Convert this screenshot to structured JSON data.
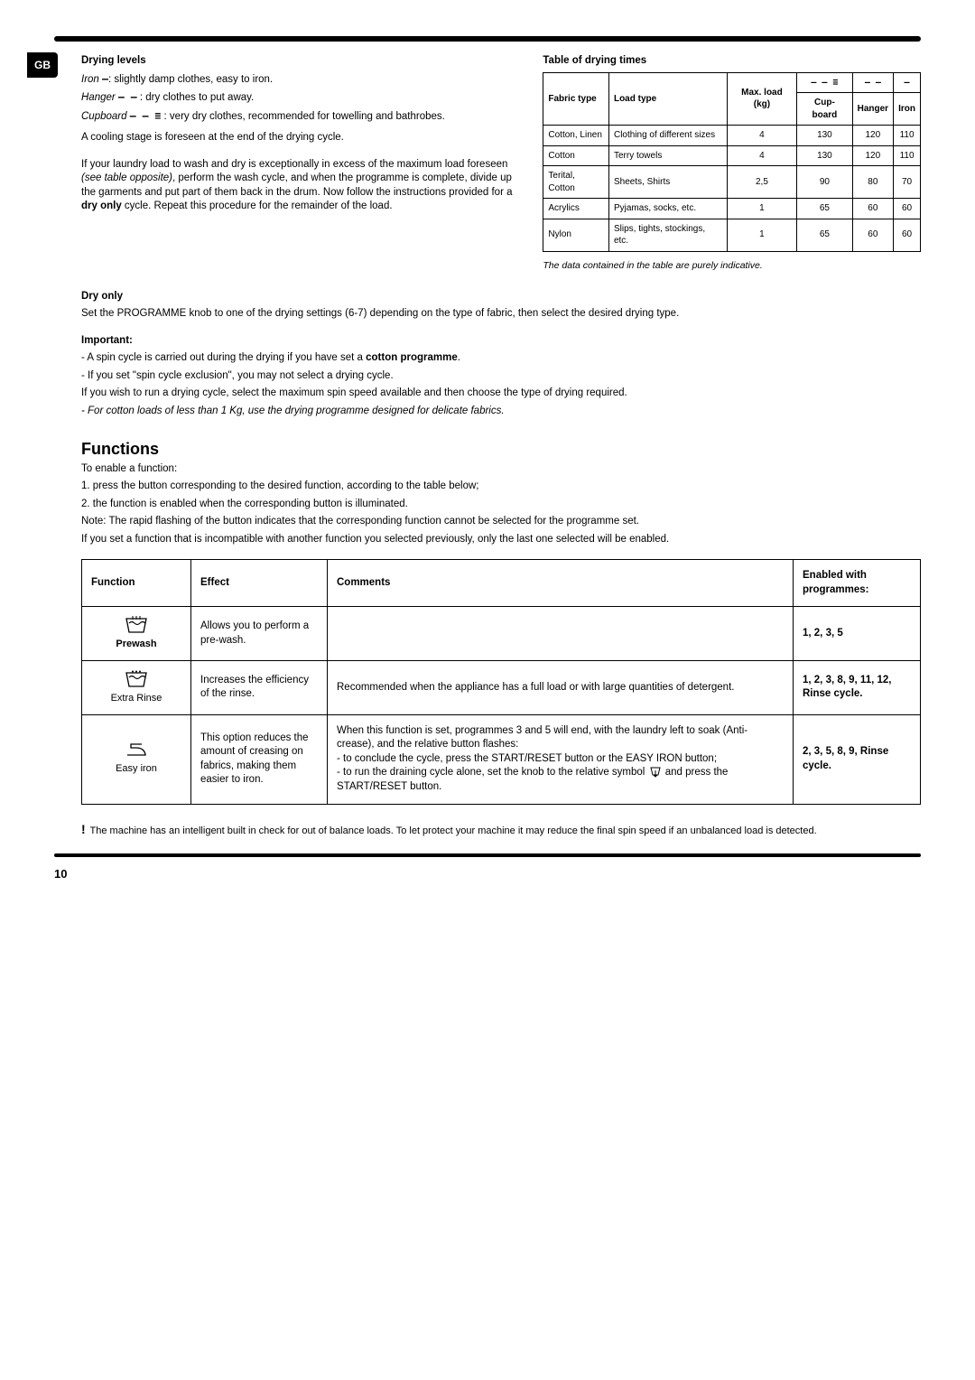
{
  "page": {
    "locale_tab": "GB",
    "number": "10"
  },
  "drying_levels": {
    "title": "Drying levels",
    "iron_label": "Iron",
    "iron_text": ": slightly damp clothes, easy to iron.",
    "hanger_label": "Hanger",
    "hanger_text": " : dry clothes to put away.",
    "cupboard_label": "Cupboard",
    "cupboard_text": " : very dry clothes, recommended for towelling and bathrobes.",
    "cooling": "A cooling stage is foreseen at the end of the drying cycle.",
    "overload_1": "If your laundry load to wash and dry is exceptionally in excess of the maximum load foreseen ",
    "overload_em": "(see table opposite)",
    "overload_2": ", perform the wash cycle, and when the programme is complete, divide up the garments and put part of them back in the drum. Now follow the instructions provided for a ",
    "overload_bold": "dry only",
    "overload_3": " cycle. Repeat this procedure for the remainder of the load."
  },
  "drying_table": {
    "title": "Table of drying times",
    "headers": {
      "fabric": "Fabric type",
      "load": "Load type",
      "max": "Max. load (kg)",
      "cupboard": "Cup-board",
      "hanger": "Hanger",
      "iron": "Iron"
    },
    "rows": [
      {
        "fabric": "Cotton, Linen",
        "load": "Clothing of different sizes",
        "max": "4",
        "cupboard": "130",
        "hanger": "120",
        "iron": "110"
      },
      {
        "fabric": "Cotton",
        "load": "Terry towels",
        "max": "4",
        "cupboard": "130",
        "hanger": "120",
        "iron": "110"
      },
      {
        "fabric": "Terital, Cotton",
        "load": "Sheets, Shirts",
        "max": "2,5",
        "cupboard": "90",
        "hanger": "80",
        "iron": "70"
      },
      {
        "fabric": "Acrylics",
        "load": "Pyjamas, socks, etc.",
        "max": "1",
        "cupboard": "65",
        "hanger": "60",
        "iron": "60"
      },
      {
        "fabric": "Nylon",
        "load": "Slips, tights, stockings, etc.",
        "max": "1",
        "cupboard": "65",
        "hanger": "60",
        "iron": "60"
      }
    ],
    "note": "The data contained in the table are purely indicative."
  },
  "dry_only": {
    "title": "Dry only",
    "text": "Set the PROGRAMME knob to one of the drying settings (6-7) depending on the type of fabric, then select the desired drying type."
  },
  "important": {
    "title": "Important:",
    "l1a": "- A spin cycle is carried out during the drying if you have set a ",
    "l1b": "cotton programme",
    "l1c": ".",
    "l2": "- If you set \"spin cycle exclusion\", you may not select a drying cycle.",
    "l3": "If you wish to run a drying cycle, select the maximum spin speed available and then choose the type of drying required.",
    "l4": "- For cotton loads of less than 1 Kg, use the drying programme designed for delicate fabrics."
  },
  "functions": {
    "title": "Functions",
    "intro": "To enable a function:",
    "s1": "1. press the button corresponding to the desired function, according to the table below;",
    "s2": "2. the function is enabled when the corresponding button is illuminated.",
    "note": "Note: The rapid flashing of the button indicates that the corresponding function cannot be selected for the programme set.",
    "incompat": "If you set a function that is incompatible with another function you selected previously, only the last one selected will be enabled.",
    "table": {
      "headers": {
        "function": "Function",
        "effect": "Effect",
        "comments": "Comments",
        "enabled": "Enabled with programmes:"
      },
      "rows": [
        {
          "name": "Prewash",
          "effect": "Allows you to perform a pre-wash.",
          "comments": "",
          "enabled": "1, 2, 3, 5"
        },
        {
          "name": "Extra Rinse",
          "effect": "Increases the efficiency of the rinse.",
          "comments": "Recommended when the appliance has a full load or with large quantities of detergent.",
          "enabled": "1, 2, 3, 8, 9, 11, 12, Rinse cycle."
        },
        {
          "name": "Easy iron",
          "effect": "This option reduces the amount of creasing on fabrics, making them easier to iron.",
          "comments_1": "When this function is set, programmes 3 and 5 will end, with the laundry left to soak (Anti-crease), and the relative button flashes:",
          "comments_2": "- to conclude the cycle, press the START/RESET button or the EASY IRON button;",
          "comments_3": "- to run the draining cycle alone, set the knob to the relative symbol ",
          "comments_4": " and press the START/RESET button.",
          "enabled": "2, 3, 5, 8, 9, Rinse cycle."
        }
      ]
    }
  },
  "warning": " The machine has an intelligent built in check for out of balance loads. To let protect your machine it may reduce the final spin speed if an unbalanced load is detected.",
  "icons": {
    "iron_sym": "—",
    "hanger_sym": "— —",
    "cupboard_sym": "— — ≡",
    "drain_sym": "↧"
  }
}
